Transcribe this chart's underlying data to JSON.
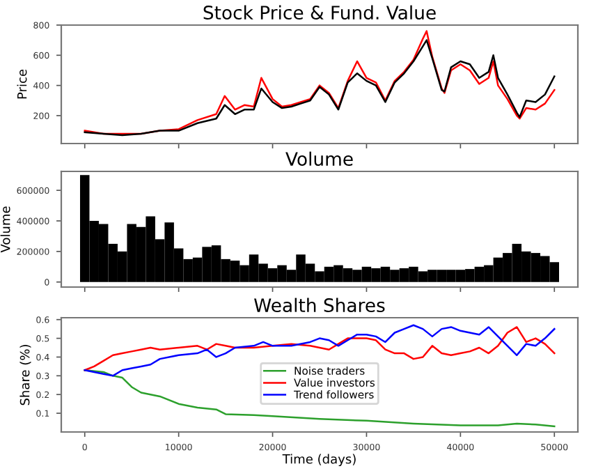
{
  "chart_data": [
    {
      "type": "line",
      "title": "Stock Price & Fund. Value",
      "ylabel": "Price",
      "xlim": [
        -2500,
        52500
      ],
      "xticks": [
        0,
        10000,
        20000,
        30000,
        40000,
        50000
      ],
      "ylim": [
        15,
        800
      ],
      "yticks": [
        200,
        400,
        600,
        800
      ],
      "tick_labels": "y",
      "grid": false,
      "legend": false,
      "series": [
        {
          "color": "#ff0000",
          "x": [
            0,
            2000,
            4000,
            6000,
            8000,
            10000,
            12000,
            14000,
            14900,
            16000,
            17000,
            18000,
            18800,
            20000,
            21000,
            22000,
            23000,
            24000,
            25000,
            26000,
            27000,
            28000,
            29000,
            30000,
            31000,
            32000,
            33000,
            34000,
            35000,
            36000,
            36400,
            37000,
            38000,
            38300,
            39000,
            40000,
            41000,
            42000,
            43000,
            43500,
            44000,
            45000,
            46000,
            46300,
            47000,
            48000,
            49000,
            50000
          ],
          "values": [
            100,
            80,
            80,
            80,
            100,
            110,
            170,
            210,
            330,
            240,
            270,
            260,
            450,
            310,
            260,
            270,
            290,
            310,
            400,
            350,
            250,
            430,
            560,
            450,
            420,
            300,
            430,
            490,
            570,
            710,
            760,
            590,
            380,
            350,
            500,
            540,
            500,
            410,
            450,
            560,
            400,
            310,
            200,
            180,
            250,
            240,
            280,
            370
          ]
        },
        {
          "color": "#000000",
          "x": [
            0,
            2000,
            4000,
            6000,
            8000,
            10000,
            12000,
            14000,
            14900,
            16000,
            17000,
            18000,
            18800,
            20000,
            21000,
            22000,
            23000,
            24000,
            25000,
            26000,
            27000,
            28000,
            29000,
            30000,
            31000,
            32000,
            33000,
            34000,
            35000,
            36000,
            36400,
            37000,
            38000,
            38300,
            39000,
            40000,
            41000,
            42000,
            43000,
            43500,
            44000,
            45000,
            46000,
            46300,
            47000,
            48000,
            49000,
            50000
          ],
          "values": [
            90,
            80,
            70,
            80,
            100,
            100,
            150,
            180,
            270,
            210,
            240,
            240,
            380,
            290,
            250,
            260,
            280,
            300,
            390,
            340,
            240,
            420,
            480,
            430,
            400,
            290,
            420,
            480,
            560,
            660,
            700,
            580,
            370,
            360,
            520,
            560,
            540,
            450,
            490,
            600,
            450,
            340,
            220,
            190,
            300,
            290,
            340,
            460
          ]
        }
      ]
    },
    {
      "type": "bar",
      "title": "Volume",
      "ylabel": "Volume",
      "xlim": [
        -2500,
        52500
      ],
      "xticks": [
        0,
        10000,
        20000,
        30000,
        40000,
        50000
      ],
      "ylim": [
        -33000,
        724000
      ],
      "yticks": [
        0,
        200000,
        400000,
        600000
      ],
      "tick_labels": "y",
      "grid": false,
      "legend": false,
      "series": [
        {
          "color": "#000000",
          "x": [
            0,
            1000,
            2000,
            3000,
            4000,
            5000,
            6000,
            7000,
            8000,
            9000,
            10000,
            11000,
            12000,
            13000,
            14000,
            15000,
            16000,
            17000,
            18000,
            19000,
            20000,
            21000,
            22000,
            23000,
            24000,
            25000,
            26000,
            27000,
            28000,
            29000,
            30000,
            31000,
            32000,
            33000,
            34000,
            35000,
            36000,
            37000,
            38000,
            39000,
            40000,
            41000,
            42000,
            43000,
            44000,
            45000,
            46000,
            47000,
            48000,
            49000,
            50000
          ],
          "values": [
            700000,
            400000,
            380000,
            250000,
            200000,
            380000,
            360000,
            430000,
            280000,
            390000,
            220000,
            150000,
            160000,
            230000,
            240000,
            150000,
            140000,
            110000,
            180000,
            120000,
            90000,
            110000,
            80000,
            180000,
            120000,
            70000,
            100000,
            110000,
            90000,
            80000,
            100000,
            90000,
            100000,
            80000,
            90000,
            100000,
            70000,
            80000,
            80000,
            80000,
            80000,
            85000,
            100000,
            110000,
            160000,
            190000,
            250000,
            200000,
            190000,
            170000,
            130000
          ]
        }
      ]
    },
    {
      "type": "line",
      "title": "Wealth Shares",
      "xlabel": "Time (days)",
      "ylabel": "Share (%)",
      "xlim": [
        -2500,
        52500
      ],
      "xticks": [
        0,
        10000,
        20000,
        30000,
        40000,
        50000
      ],
      "ylim": [
        0.0,
        0.61
      ],
      "yticks": [
        0.1,
        0.2,
        0.3,
        0.4,
        0.5,
        0.6
      ],
      "grid": false,
      "legend": "bottom",
      "series": [
        {
          "name": "Noise traders",
          "color": "#2ca02c",
          "x": [
            0,
            2000,
            3000,
            4000,
            5000,
            6000,
            8000,
            10000,
            12000,
            14000,
            15000,
            18000,
            20000,
            25000,
            30000,
            35000,
            40000,
            44000,
            46000,
            48000,
            50000
          ],
          "values": [
            0.33,
            0.32,
            0.3,
            0.29,
            0.24,
            0.21,
            0.19,
            0.15,
            0.13,
            0.12,
            0.095,
            0.09,
            0.085,
            0.07,
            0.06,
            0.045,
            0.035,
            0.035,
            0.045,
            0.04,
            0.03
          ]
        },
        {
          "name": "Value investors",
          "color": "#ff0000",
          "x": [
            0,
            1000,
            2000,
            3000,
            4000,
            5000,
            6000,
            7000,
            8000,
            10000,
            12000,
            13000,
            14000,
            15000,
            16000,
            18000,
            20000,
            22000,
            24000,
            25000,
            26000,
            27000,
            28000,
            30000,
            31000,
            32000,
            33000,
            34000,
            35000,
            36000,
            37000,
            38000,
            39000,
            40000,
            41000,
            42000,
            43000,
            44000,
            45000,
            46000,
            47000,
            48000,
            49000,
            50000
          ],
          "values": [
            0.33,
            0.35,
            0.38,
            0.41,
            0.42,
            0.43,
            0.44,
            0.45,
            0.44,
            0.45,
            0.46,
            0.44,
            0.47,
            0.46,
            0.45,
            0.45,
            0.46,
            0.47,
            0.46,
            0.45,
            0.44,
            0.47,
            0.5,
            0.5,
            0.49,
            0.44,
            0.42,
            0.42,
            0.39,
            0.4,
            0.46,
            0.42,
            0.41,
            0.42,
            0.43,
            0.45,
            0.42,
            0.46,
            0.53,
            0.56,
            0.48,
            0.5,
            0.47,
            0.42
          ]
        },
        {
          "name": "Trend followers",
          "color": "#0000ff",
          "x": [
            0,
            1000,
            2000,
            3000,
            4000,
            5000,
            6000,
            7000,
            8000,
            10000,
            12000,
            13000,
            14000,
            15000,
            16000,
            18000,
            19000,
            20000,
            22000,
            24000,
            25000,
            26000,
            27000,
            28000,
            29000,
            30000,
            31000,
            32000,
            33000,
            34000,
            35000,
            36000,
            37000,
            38000,
            39000,
            40000,
            41000,
            42000,
            43000,
            44000,
            45000,
            46000,
            47000,
            48000,
            49000,
            50000
          ],
          "values": [
            0.33,
            0.32,
            0.31,
            0.3,
            0.33,
            0.34,
            0.35,
            0.36,
            0.39,
            0.41,
            0.42,
            0.44,
            0.4,
            0.42,
            0.45,
            0.46,
            0.48,
            0.46,
            0.46,
            0.48,
            0.5,
            0.49,
            0.46,
            0.49,
            0.52,
            0.52,
            0.51,
            0.48,
            0.53,
            0.55,
            0.57,
            0.55,
            0.51,
            0.55,
            0.56,
            0.54,
            0.53,
            0.52,
            0.56,
            0.51,
            0.46,
            0.41,
            0.47,
            0.46,
            0.5,
            0.55
          ]
        }
      ]
    }
  ]
}
